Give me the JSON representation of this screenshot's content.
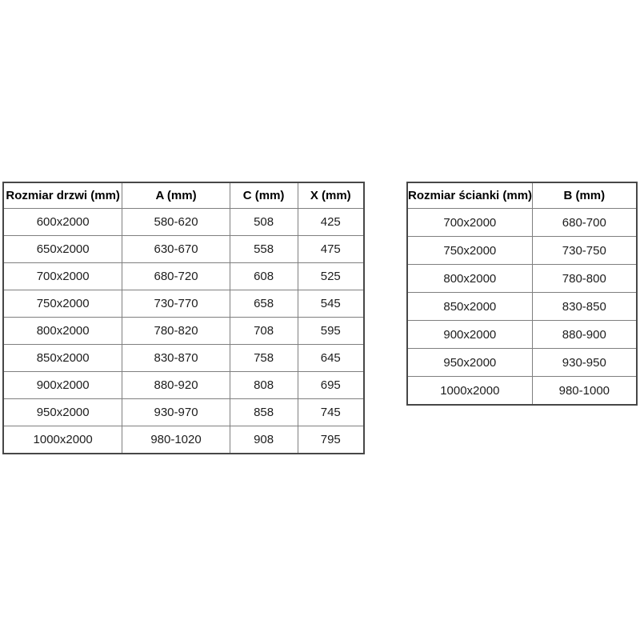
{
  "page": {
    "background": "#ffffff"
  },
  "colors": {
    "outer_border": "#474747",
    "inner_border": "#7f7f7f",
    "header_text": "#000000",
    "cell_text": "#1d1d1d"
  },
  "tables": [
    {
      "name": "door-sizes",
      "headers": [
        "Rozmiar drzwi (mm)",
        "A (mm)",
        "C (mm)",
        "X (mm)"
      ],
      "rows": [
        [
          "600x2000",
          "580-620",
          "508",
          "425"
        ],
        [
          "650x2000",
          "630-670",
          "558",
          "475"
        ],
        [
          "700x2000",
          "680-720",
          "608",
          "525"
        ],
        [
          "750x2000",
          "730-770",
          "658",
          "545"
        ],
        [
          "800x2000",
          "780-820",
          "708",
          "595"
        ],
        [
          "850x2000",
          "830-870",
          "758",
          "645"
        ],
        [
          "900x2000",
          "880-920",
          "808",
          "695"
        ],
        [
          "950x2000",
          "930-970",
          "858",
          "745"
        ],
        [
          "1000x2000",
          "980-1020",
          "908",
          "795"
        ]
      ]
    },
    {
      "name": "wall-sizes",
      "headers": [
        "Rozmiar ścianki (mm)",
        "B (mm)"
      ],
      "rows": [
        [
          "700x2000",
          "680-700"
        ],
        [
          "750x2000",
          "730-750"
        ],
        [
          "800x2000",
          "780-800"
        ],
        [
          "850x2000",
          "830-850"
        ],
        [
          "900x2000",
          "880-900"
        ],
        [
          "950x2000",
          "930-950"
        ],
        [
          "1000x2000",
          "980-1000"
        ]
      ]
    }
  ]
}
